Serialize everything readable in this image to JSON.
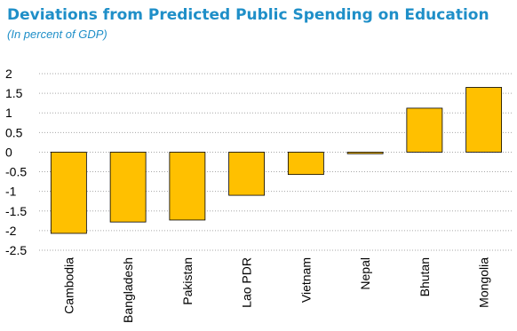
{
  "chart_data": {
    "type": "bar",
    "title": "Deviations from Predicted Public Spending on Education",
    "subtitle": "(In percent of GDP)",
    "xlabel": "",
    "ylabel": "",
    "categories": [
      "Cambodia",
      "Bangladesh",
      "Pakistan",
      "Lao PDR",
      "Vietnam",
      "Nepal",
      "Bhutan",
      "Mongolia"
    ],
    "values": [
      -2.07,
      -1.78,
      -1.73,
      -1.1,
      -0.57,
      -0.04,
      1.12,
      1.65
    ],
    "ylim": [
      -2.5,
      2
    ],
    "yticks": [
      "2",
      "1.5",
      "1",
      "0.5",
      "0",
      "-0.5",
      "-1",
      "-1.5",
      "-2",
      "-2.5"
    ],
    "grid": true,
    "gridlines": "dotted",
    "legend": "none",
    "colors": {
      "bar_fill": "#FFC000",
      "bar_stroke": "#000000",
      "title": "#1F8FC8",
      "grid": "#A6A6A6"
    }
  }
}
